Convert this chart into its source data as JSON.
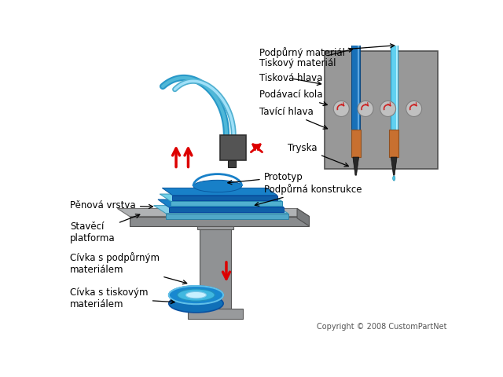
{
  "background_color": "#ffffff",
  "copyright": "Copyright © 2008 CustomPartNet",
  "labels": {
    "Podpurny_material": "Podpůrný materiál",
    "Tiskovy_material": "Tiskový materiál",
    "Tiskova_hlava": "Tisková hlava",
    "Podavaci_kola": "Podávací kola",
    "Tavici_hlava": "Tavící hlava",
    "Tryska": "Tryska",
    "Prototyp": "Prototyp",
    "Podpurna_konstrukce": "Podpůrná konstrukce",
    "Penova_vrstva": "Pěnová vrstva",
    "Staveci_platforma": "Stavěcí\nplatforma",
    "Civka_podpurny": "Cívka s podpůrným\nmateriálem",
    "Civka_tiskovy": "Cívka s tiskovým\nmateriálem"
  },
  "colors": {
    "background": "#ffffff",
    "blue_dark": "#1060a0",
    "blue_medium": "#1888c8",
    "blue_light": "#50b8d8",
    "cyan_tube1": "#40b0d0",
    "cyan_tube2": "#88d8f0",
    "orange_rod": "#c87030",
    "cyan_rod": "#40b8e0",
    "cyan_rod_light": "#88ddf0",
    "gray_box": "#989898",
    "gray_dark": "#686868",
    "gray_platform": "#a8a8a8",
    "gray_platform_dark": "#787878",
    "gray_platform_side": "#686868",
    "gray_pedestal": "#909090",
    "head_dark": "#505050",
    "head_med": "#606060",
    "arrow_red": "#dd0000",
    "text_color": "#000000",
    "gear_fill": "#c0c0c0",
    "gear_edge": "#808080",
    "coil_outer": "#1880c0",
    "coil_mid": "#40b8e0",
    "coil_light": "#88e0f8",
    "coil_white": "#c0f0ff",
    "support_light": "#80d0e8",
    "support_dark": "#40a0c0",
    "nozzle_tip": "#303030"
  }
}
